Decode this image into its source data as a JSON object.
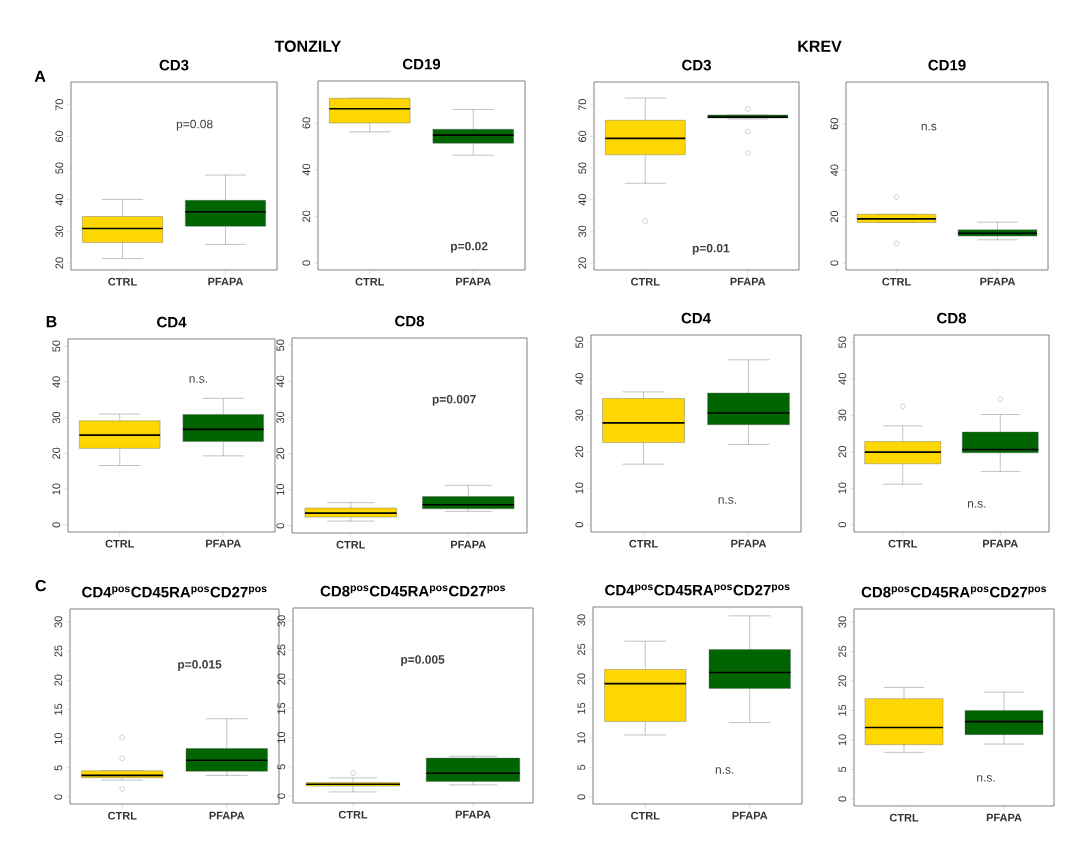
{
  "chart_data": [
    {
      "type": "box",
      "title": "CD3",
      "categories": [
        "CTRL",
        "PFAPA"
      ],
      "colors": [
        "#ffd700",
        "#006400"
      ],
      "ylim": [
        17.8,
        77.2
      ],
      "yticks": [
        20,
        30,
        40,
        50,
        60,
        70
      ],
      "annotations": [
        "p=0.08",
        "TONZILY",
        "A"
      ],
      "boxes": [
        {
          "low": 21.4,
          "q1": 26.5,
          "median": 30.9,
          "q3": 34.7,
          "high": 40.1
        },
        {
          "low": 25.9,
          "q1": 31.6,
          "median": 36.2,
          "q3": 39.8,
          "high": 47.8
        }
      ]
    },
    {
      "type": "box",
      "title": "CD19",
      "categories": [
        "CTRL",
        "PFAPA"
      ],
      "colors": [
        "#ffd700",
        "#006400"
      ],
      "ylim": [
        -3,
        78
      ],
      "yticks": [
        0,
        20,
        40,
        60
      ],
      "annotations": [
        "p=0.02"
      ],
      "boxes": [
        {
          "low": 56.2,
          "q1": 60,
          "median": 66.1,
          "q3": 70.6,
          "high": 70.6
        },
        {
          "low": 46.2,
          "q1": 51.3,
          "median": 54.8,
          "q3": 57.3,
          "high": 65.8
        }
      ]
    },
    {
      "type": "box",
      "title": "CD3",
      "categories": [
        "CTRL",
        "PFAPA"
      ],
      "colors": [
        "#ffd700",
        "#006400"
      ],
      "ylim": [
        17.8,
        77.2
      ],
      "yticks": [
        20,
        30,
        40,
        50,
        60,
        70
      ],
      "annotations": [
        "p=0.01",
        "KREV"
      ],
      "boxes": [
        {
          "low": 45.2,
          "q1": 54.2,
          "median": 59.4,
          "q3": 65.1,
          "high": 72.1,
          "outliers": [
            33.2
          ]
        },
        {
          "low": 65.5,
          "q1": 65.8,
          "median": 66.1,
          "q3": 66.8,
          "high": 66.8,
          "outliers": [
            68.7,
            61.6,
            54.8
          ]
        }
      ]
    },
    {
      "type": "box",
      "title": "CD19",
      "categories": [
        "CTRL",
        "PFAPA"
      ],
      "colors": [
        "#ffd700",
        "#006400"
      ],
      "ylim": [
        -3,
        78
      ],
      "yticks": [
        0,
        20,
        40,
        60
      ],
      "annotations": [
        "n.s"
      ],
      "boxes": [
        {
          "low": 17.5,
          "q1": 17.5,
          "median": 19.0,
          "q3": 21.0,
          "high": 21.0,
          "outliers": [
            28.4,
            8.4
          ]
        },
        {
          "low": 10.0,
          "q1": 11.6,
          "median": 12.8,
          "q3": 14.3,
          "high": 17.6
        }
      ]
    },
    {
      "type": "box",
      "title": "CD4",
      "categories": [
        "CTRL",
        "PFAPA"
      ],
      "colors": [
        "#ffd700",
        "#006400"
      ],
      "ylim": [
        -2,
        52
      ],
      "yticks": [
        0,
        10,
        20,
        30,
        40,
        50
      ],
      "annotations": [
        "n.s.",
        "B"
      ],
      "boxes": [
        {
          "low": 16.6,
          "q1": 21.4,
          "median": 25.1,
          "q3": 29.1,
          "high": 31.0
        },
        {
          "low": 19.3,
          "q1": 23.3,
          "median": 26.7,
          "q3": 30.9,
          "high": 35.4
        }
      ]
    },
    {
      "type": "box",
      "title": "CD8",
      "categories": [
        "CTRL",
        "PFAPA"
      ],
      "colors": [
        "#ffd700",
        "#006400"
      ],
      "ylim": [
        -2,
        52
      ],
      "yticks": [
        0,
        10,
        20,
        30,
        40,
        50
      ],
      "annotations": [
        "p=0.007"
      ],
      "boxes": [
        {
          "low": 1.3,
          "q1": 2.4,
          "median": 3.5,
          "q3": 4.9,
          "high": 6.4
        },
        {
          "low": 4.0,
          "q1": 4.7,
          "median": 5.8,
          "q3": 8.1,
          "high": 11.2
        }
      ]
    },
    {
      "type": "box",
      "title": "CD4",
      "categories": [
        "CTRL",
        "PFAPA"
      ],
      "colors": [
        "#ffd700",
        "#006400"
      ],
      "ylim": [
        -2,
        52
      ],
      "yticks": [
        0,
        10,
        20,
        30,
        40,
        50
      ],
      "annotations": [
        "n.s."
      ],
      "boxes": [
        {
          "low": 16.6,
          "q1": 22.5,
          "median": 27.9,
          "q3": 34.6,
          "high": 36.4
        },
        {
          "low": 22.0,
          "q1": 27.4,
          "median": 30.6,
          "q3": 36.1,
          "high": 45.2
        }
      ]
    },
    {
      "type": "box",
      "title": "CD8",
      "categories": [
        "CTRL",
        "PFAPA"
      ],
      "colors": [
        "#ffd700",
        "#006400"
      ],
      "ylim": [
        -2,
        52
      ],
      "yticks": [
        0,
        10,
        20,
        30,
        40,
        50
      ],
      "annotations": [
        "n.s."
      ],
      "boxes": [
        {
          "low": 11.1,
          "q1": 16.7,
          "median": 19.9,
          "q3": 22.8,
          "high": 27.1,
          "outliers": [
            32.4
          ]
        },
        {
          "low": 14.6,
          "q1": 19.7,
          "median": 20.6,
          "q3": 25.4,
          "high": 30.2,
          "outliers": [
            34.4
          ]
        }
      ]
    },
    {
      "type": "box",
      "title": "CD4$^{pos}$CD45RA$^{pos}$CD27$^{pos}$",
      "categories": [
        "CTRL",
        "PFAPA"
      ],
      "colors": [
        "#ffd700",
        "#006400"
      ],
      "ylim": [
        -1.2,
        32.2
      ],
      "yticks": [
        0,
        5,
        10,
        15,
        20,
        25,
        30
      ],
      "annotations": [
        "p=0.015",
        "C"
      ],
      "boxes": [
        {
          "low": 2.9,
          "q1": 3.3,
          "median": 3.7,
          "q3": 4.5,
          "high": 4.5,
          "outliers": [
            10.2,
            6.6,
            1.4
          ]
        },
        {
          "low": 3.7,
          "q1": 4.4,
          "median": 6.3,
          "q3": 8.3,
          "high": 13.4
        }
      ]
    },
    {
      "type": "box",
      "title": "CD8$^{pos}$CD45RA$^{pos}$CD27$^{pos}$",
      "categories": [
        "CTRL",
        "PFAPA"
      ],
      "colors": [
        "#ffd700",
        "#006400"
      ],
      "ylim": [
        -1.2,
        32.2
      ],
      "yticks": [
        0,
        5,
        10,
        15,
        20,
        25,
        30
      ],
      "annotations": [
        "p=0.005"
      ],
      "boxes": [
        {
          "low": 0.7,
          "q1": 1.7,
          "median": 2.0,
          "q3": 2.3,
          "high": 3.1,
          "outliers": [
            3.9
          ]
        },
        {
          "low": 1.9,
          "q1": 2.5,
          "median": 3.9,
          "q3": 6.5,
          "high": 6.8
        }
      ]
    },
    {
      "type": "box",
      "title": "CD4$^{pos}$CD45RA$^{pos}$CD27$^{pos}$",
      "categories": [
        "CTRL",
        "PFAPA"
      ],
      "colors": [
        "#ffd700",
        "#006400"
      ],
      "ylim": [
        -1.2,
        32.2
      ],
      "yticks": [
        0,
        5,
        10,
        15,
        20,
        25,
        30
      ],
      "annotations": [
        "n.s."
      ],
      "boxes": [
        {
          "low": 10.5,
          "q1": 12.8,
          "median": 19.2,
          "q3": 21.6,
          "high": 26.4
        },
        {
          "low": 12.6,
          "q1": 18.4,
          "median": 21.1,
          "q3": 25.0,
          "high": 30.7
        }
      ]
    },
    {
      "type": "box",
      "title": "CD8$^{pos}$CD45RA$^{pos}$CD27$^{pos}$",
      "categories": [
        "CTRL",
        "PFAPA"
      ],
      "colors": [
        "#ffd700",
        "#006400"
      ],
      "ylim": [
        -1.2,
        32.2
      ],
      "yticks": [
        0,
        5,
        10,
        15,
        20,
        25,
        30
      ],
      "annotations": [
        "n.s."
      ],
      "boxes": [
        {
          "low": 7.9,
          "q1": 9.2,
          "median": 12.1,
          "q3": 17.0,
          "high": 18.9
        },
        {
          "low": 9.3,
          "q1": 10.9,
          "median": 13.1,
          "q3": 15.0,
          "high": 18.1
        }
      ]
    }
  ]
}
